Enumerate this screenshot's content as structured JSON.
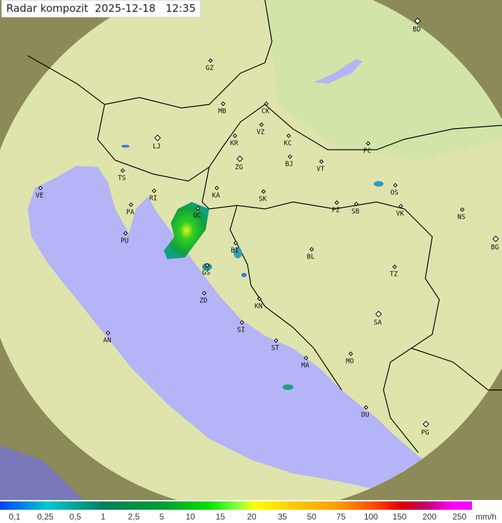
{
  "title": "Radar kompozit  2025-12-18   12:35",
  "legend": {
    "labels": [
      "0,1",
      "0,25",
      "0,5",
      "1",
      "2,5",
      "5",
      "10",
      "15",
      "20",
      "35",
      "50",
      "75",
      "100",
      "150",
      "200",
      "250"
    ],
    "unit": "mm/h"
  },
  "cities": [
    "BD",
    "GZ",
    "MB",
    "CK",
    "VZ",
    "KR",
    "KC",
    "PC",
    "LJ",
    "BJ",
    "ZG",
    "VT",
    "TS",
    "VE",
    "KA",
    "SK",
    "OS",
    "RI",
    "PA",
    "PZ",
    "SB",
    "VK",
    "NS",
    "OC",
    "PU",
    "BI",
    "BL",
    "BG",
    "GS",
    "TZ",
    "ZD",
    "KN",
    "SA",
    "AN",
    "SI",
    "ST",
    "MO",
    "MA",
    "DU",
    "PG"
  ],
  "colors": {
    "sea": "#b4b4f6",
    "land": "#dfe4ac",
    "outside": "#8c8a58",
    "border": "#000000"
  }
}
